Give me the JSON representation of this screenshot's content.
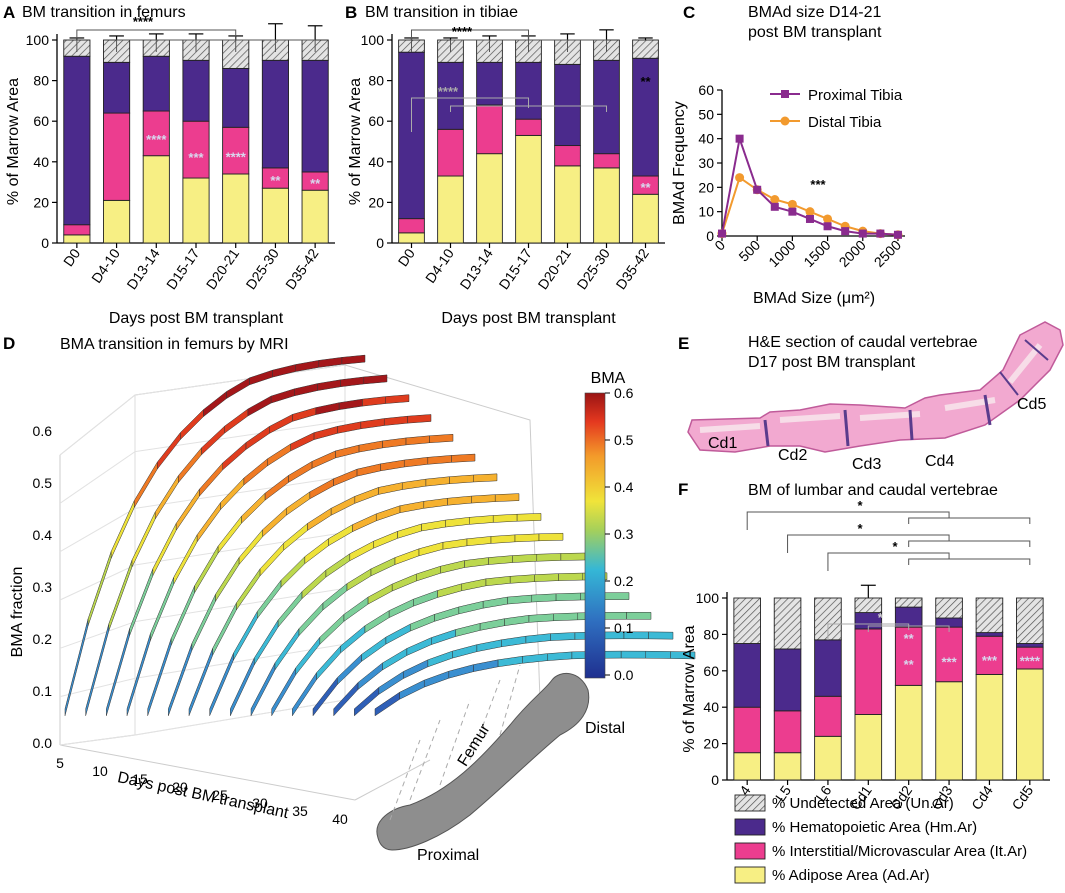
{
  "colors": {
    "undetected": "#d9d9d9",
    "hematopoietic": "#4b2a8c",
    "interstitial": "#ec3d8f",
    "adipose": "#f7ef84",
    "proximal_tibia": "#8a2b8e",
    "distal_tibia": "#f29a2e",
    "sig_white": "#d8d8ee"
  },
  "panels": {
    "A": {
      "letter": "A",
      "title": "BM transition in femurs"
    },
    "B": {
      "letter": "B",
      "title": "BM transition in tibiae"
    },
    "C": {
      "letter": "C",
      "title_line1": "BMAd size D14-21",
      "title_line2": "post BM transplant"
    },
    "D": {
      "letter": "D",
      "title": "BMA transition in femurs by MRI"
    },
    "E": {
      "letter": "E",
      "title_line1": "H&E section of caudal vertebrae",
      "title_line2": "D17 post BM transplant",
      "labels": [
        "Cd1",
        "Cd2",
        "Cd3",
        "Cd4",
        "Cd5"
      ]
    },
    "F": {
      "letter": "F",
      "title": "BM of lumbar and caudal vertebrae"
    }
  },
  "legend": {
    "items": [
      {
        "key": "undetected",
        "label": "% Undetected Area (Un.Ar)"
      },
      {
        "key": "hematopoietic",
        "label": "% Hematopoietic Area (Hm.Ar)"
      },
      {
        "key": "interstitial",
        "label": "% Interstitial/Microvascular Area (It.Ar)"
      },
      {
        "key": "adipose",
        "label": "% Adipose Area (Ad.Ar)"
      }
    ]
  },
  "chart_data": [
    {
      "id": "A",
      "type": "bar",
      "stacked": true,
      "title": "BM transition in femurs",
      "xlabel": "Days post BM transplant",
      "ylabel": "% of Marrow Area",
      "ylim": [
        0,
        100
      ],
      "yticks": [
        0,
        20,
        40,
        60,
        80,
        100
      ],
      "categories": [
        "D0",
        "D4-10",
        "D13-14",
        "D15-17",
        "D20-21",
        "D25-30",
        "D35-42"
      ],
      "series": [
        {
          "name": "% Adipose Area (Ad.Ar)",
          "key": "adipose",
          "values": [
            4,
            21,
            43,
            32,
            34,
            27,
            26
          ],
          "errors": [
            1,
            8,
            12,
            9,
            6,
            5,
            7
          ]
        },
        {
          "name": "% Interstitial/Microvascular Area (It.Ar)",
          "key": "interstitial",
          "values": [
            5,
            43,
            22,
            28,
            23,
            10,
            9
          ],
          "errors": [
            1,
            8,
            6,
            5,
            5,
            4,
            5
          ]
        },
        {
          "name": "% Hematopoietic Area (Hm.Ar)",
          "key": "hematopoietic",
          "values": [
            83,
            25,
            27,
            30,
            29,
            53,
            55
          ],
          "errors": [
            1,
            2,
            3,
            5,
            5,
            5,
            5
          ]
        },
        {
          "name": "% Undetected Area (Un.Ar)",
          "key": "undetected",
          "values": [
            8,
            11,
            8,
            10,
            14,
            10,
            10
          ],
          "errors": [
            1,
            2,
            3,
            3,
            2,
            8,
            7
          ]
        }
      ],
      "bar_annotations": [
        "",
        "",
        "****",
        "***",
        "****",
        "**",
        "**"
      ],
      "bracket_label": "****"
    },
    {
      "id": "B",
      "type": "bar",
      "stacked": true,
      "title": "BM transition in tibiae",
      "xlabel": "Days post BM transplant",
      "ylabel": "% of Marrow Area",
      "ylim": [
        0,
        100
      ],
      "yticks": [
        0,
        20,
        40,
        60,
        80,
        100
      ],
      "categories": [
        "D0",
        "D4-10",
        "D13-14",
        "D15-17",
        "D20-21",
        "D25-30",
        "D35-42"
      ],
      "series": [
        {
          "name": "% Adipose Area (Ad.Ar)",
          "key": "adipose",
          "values": [
            5,
            33,
            44,
            53,
            38,
            37,
            24
          ],
          "errors": [
            1,
            13,
            4,
            8,
            6,
            6,
            5
          ]
        },
        {
          "name": "% Interstitial/Microvascular Area (It.Ar)",
          "key": "interstitial",
          "values": [
            7,
            23,
            24,
            8,
            10,
            7,
            9
          ],
          "errors": [
            1,
            6,
            2,
            4,
            4,
            5,
            3
          ]
        },
        {
          "name": "% Hematopoietic Area (Hm.Ar)",
          "key": "hematopoietic",
          "values": [
            82,
            33,
            21,
            28,
            40,
            46,
            58
          ],
          "errors": [
            1,
            1,
            2,
            3,
            3,
            3,
            2
          ]
        },
        {
          "name": "% Undetected Area (Un.Ar)",
          "key": "undetected",
          "values": [
            6,
            11,
            11,
            11,
            12,
            10,
            9
          ],
          "errors": [
            1,
            1,
            2,
            2,
            3,
            5,
            1
          ]
        }
      ],
      "bar_annotations": [
        "",
        "",
        "",
        "",
        "",
        "",
        "**"
      ],
      "bracket_label": "****",
      "inner_bracket_label": "****",
      "top_right_label": "**"
    },
    {
      "id": "C",
      "type": "line",
      "title": "BMAd size D14-21 post BM transplant",
      "xlabel": "BMAd Size (μm²)",
      "ylabel": "BMAd Frequency",
      "xlim": [
        0,
        2600
      ],
      "ylim": [
        0,
        60
      ],
      "xticks": [
        0,
        500,
        1000,
        1500,
        2000,
        2500
      ],
      "yticks": [
        0,
        10,
        20,
        30,
        40,
        50,
        60
      ],
      "x": [
        0,
        250,
        500,
        750,
        1000,
        1250,
        1500,
        1750,
        2000,
        2250,
        2500
      ],
      "series": [
        {
          "name": "Proximal Tibia",
          "key": "proximal_tibia",
          "marker": "square",
          "values": [
            1,
            40,
            19,
            12,
            10,
            7,
            4,
            2,
            1,
            1,
            0.5
          ]
        },
        {
          "name": "Distal Tibia",
          "key": "distal_tibia",
          "marker": "circle",
          "values": [
            1,
            24,
            19,
            15,
            13,
            10,
            7,
            4,
            2,
            1,
            0.5
          ]
        }
      ],
      "annotation": "***"
    },
    {
      "id": "D",
      "type": "surface",
      "title": "BMA transition in femurs by MRI",
      "xlabel": "Days post BM transplant",
      "ylabel": "BMA fraction",
      "xticks": [
        5,
        10,
        15,
        20,
        25,
        30,
        35,
        40
      ],
      "zticks": [
        "0.0",
        "0.1",
        "0.2",
        "0.3",
        "0.4",
        "0.5",
        "0.6"
      ],
      "colorbar_label": "BMA",
      "colorbar_ticks": [
        "0.6",
        "0.5",
        "0.4",
        "0.3",
        "0.2",
        "0.1",
        "0.0"
      ],
      "femur_labels": {
        "distal": "Distal",
        "femur": "Femur",
        "proximal": "Proximal"
      }
    },
    {
      "id": "F",
      "type": "bar",
      "stacked": true,
      "title": "BM of lumbar and caudal vertebrae",
      "ylabel": "% of Marrow Area",
      "ylim": [
        0,
        100
      ],
      "yticks": [
        0,
        20,
        40,
        60,
        80,
        100
      ],
      "categories": [
        "L4",
        "L5",
        "L6",
        "Cd1",
        "Cd2",
        "Cd3",
        "Cd4",
        "Cd5"
      ],
      "series": [
        {
          "name": "% Adipose Area (Ad.Ar)",
          "key": "adipose",
          "values": [
            15,
            15,
            24,
            36,
            52,
            54,
            58,
            61
          ],
          "errors": [
            6,
            7,
            11,
            10,
            8,
            5,
            5,
            3
          ]
        },
        {
          "name": "% Interstitial/Microvascular Area (It.Ar)",
          "key": "interstitial",
          "values": [
            25,
            23,
            22,
            47,
            32,
            30,
            21,
            12
          ],
          "errors": [
            11,
            6,
            9,
            3,
            8,
            4,
            8,
            3
          ]
        },
        {
          "name": "% Hematopoietic Area (Hm.Ar)",
          "key": "hematopoietic",
          "values": [
            35,
            34,
            31,
            9,
            11,
            5,
            2,
            2
          ],
          "errors": [
            22,
            22,
            22,
            15,
            2,
            2,
            2,
            1
          ]
        },
        {
          "name": "% Undetected Area (Un.Ar)",
          "key": "undetected",
          "values": [
            25,
            28,
            23,
            8,
            5,
            11,
            19,
            25
          ],
          "errors": [
            0,
            0,
            0,
            0,
            0,
            0,
            0,
            0
          ]
        }
      ],
      "bar_annotations": [
        "",
        "",
        "",
        "",
        "**",
        "***",
        "***",
        "****"
      ],
      "upper_annotations": [
        "",
        "",
        "",
        "",
        "**",
        "",
        "",
        ""
      ],
      "bracket_labels": [
        "*",
        "*",
        "*"
      ],
      "inner_bracket_label": "*"
    }
  ]
}
